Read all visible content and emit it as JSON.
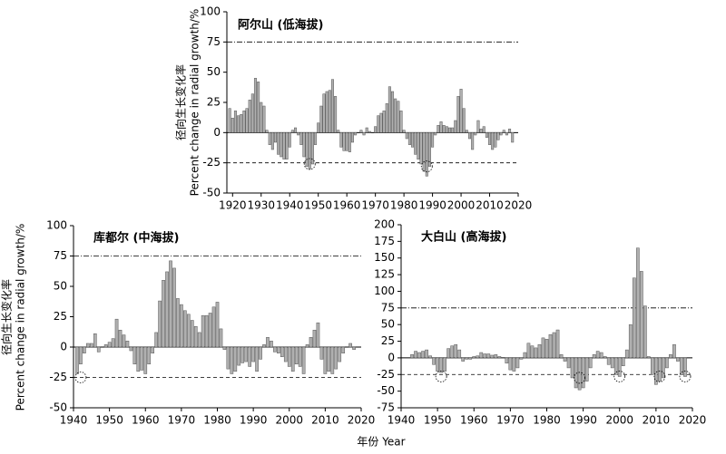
{
  "xlabel": "年份 Year",
  "ylabel": [
    "径向生长变化率",
    "Percent change in radial growth/%"
  ],
  "chart_data": [
    {
      "type": "bar",
      "title": "阿尔山 (低海拔)",
      "color": "#b0b0b0",
      "x": [
        1919,
        1920,
        1921,
        1922,
        1923,
        1924,
        1925,
        1926,
        1927,
        1928,
        1929,
        1930,
        1931,
        1932,
        1933,
        1934,
        1935,
        1936,
        1937,
        1938,
        1939,
        1940,
        1941,
        1942,
        1943,
        1944,
        1945,
        1946,
        1947,
        1948,
        1949,
        1950,
        1951,
        1952,
        1953,
        1954,
        1955,
        1956,
        1957,
        1958,
        1959,
        1960,
        1961,
        1962,
        1963,
        1964,
        1965,
        1966,
        1967,
        1968,
        1969,
        1970,
        1971,
        1972,
        1973,
        1974,
        1975,
        1976,
        1977,
        1978,
        1979,
        1980,
        1981,
        1982,
        1983,
        1984,
        1985,
        1986,
        1987,
        1988,
        1989,
        1990,
        1991,
        1992,
        1993,
        1994,
        1995,
        1996,
        1997,
        1998,
        1999,
        2000,
        2001,
        2002,
        2003,
        2004,
        2005,
        2006,
        2007,
        2008,
        2009,
        2010,
        2011,
        2012,
        2013,
        2014,
        2015,
        2016,
        2017,
        2018
      ],
      "values": [
        20,
        12,
        18,
        14,
        15,
        18,
        20,
        27,
        32,
        45,
        42,
        25,
        22,
        2,
        -10,
        -14,
        -8,
        -18,
        -20,
        -22,
        -22,
        -12,
        2,
        4,
        -2,
        -10,
        -20,
        -28,
        -30,
        -26,
        -10,
        8,
        22,
        32,
        34,
        35,
        44,
        30,
        2,
        -12,
        -15,
        -15,
        -16,
        -8,
        -2,
        0,
        2,
        -2,
        4,
        1,
        0,
        5,
        14,
        16,
        18,
        24,
        38,
        34,
        28,
        26,
        18,
        2,
        -5,
        -10,
        -12,
        -18,
        -22,
        -26,
        -32,
        -36,
        -28,
        -12,
        -2,
        6,
        9,
        6,
        5,
        4,
        4,
        10,
        30,
        36,
        20,
        2,
        -5,
        -14,
        -2,
        10,
        3,
        5,
        -4,
        -10,
        -14,
        -12,
        -6,
        -2,
        2,
        -2,
        3,
        -8
      ],
      "xlim": [
        1918,
        2020
      ],
      "xticks": [
        1920,
        1930,
        1940,
        1950,
        1960,
        1970,
        1980,
        1990,
        2000,
        2010,
        2020
      ],
      "ylim": [
        -50,
        100
      ],
      "yticks": [
        -50,
        -25,
        0,
        25,
        50,
        75,
        100
      ],
      "reference_lines": [
        75,
        -25
      ],
      "circles": [
        {
          "x": 1947,
          "y": -26
        },
        {
          "x": 1988,
          "y": -28
        }
      ]
    },
    {
      "type": "bar",
      "title": "库都尔 (中海拔)",
      "color": "#b0b0b0",
      "x": [
        1941,
        1942,
        1943,
        1944,
        1945,
        1946,
        1947,
        1948,
        1949,
        1950,
        1951,
        1952,
        1953,
        1954,
        1955,
        1956,
        1957,
        1958,
        1959,
        1960,
        1961,
        1962,
        1963,
        1964,
        1965,
        1966,
        1967,
        1968,
        1969,
        1970,
        1971,
        1972,
        1973,
        1974,
        1975,
        1976,
        1977,
        1978,
        1979,
        1980,
        1981,
        1982,
        1983,
        1984,
        1985,
        1986,
        1987,
        1988,
        1989,
        1990,
        1991,
        1992,
        1993,
        1994,
        1995,
        1996,
        1997,
        1998,
        1999,
        2000,
        2001,
        2002,
        2003,
        2004,
        2005,
        2006,
        2007,
        2008,
        2009,
        2010,
        2011,
        2012,
        2013,
        2014,
        2015,
        2016,
        2017,
        2018
      ],
      "values": [
        -22,
        -14,
        -5,
        3,
        3,
        11,
        -4,
        0,
        2,
        4,
        7,
        23,
        14,
        10,
        5,
        -3,
        -14,
        -20,
        -19,
        -22,
        -14,
        -5,
        12,
        38,
        55,
        62,
        71,
        65,
        40,
        35,
        30,
        27,
        22,
        17,
        12,
        26,
        26,
        28,
        33,
        37,
        15,
        -2,
        -18,
        -22,
        -20,
        -15,
        -13,
        -12,
        -16,
        -12,
        -20,
        -10,
        2,
        8,
        5,
        -4,
        -5,
        -8,
        -12,
        -16,
        -20,
        -14,
        -16,
        -22,
        2,
        8,
        14,
        20,
        -10,
        -22,
        -20,
        -22,
        -18,
        -12,
        -5,
        0,
        3,
        -2
      ],
      "xlim": [
        1940,
        2020
      ],
      "xticks": [
        1940,
        1950,
        1960,
        1970,
        1980,
        1990,
        2000,
        2010,
        2020
      ],
      "ylim": [
        -50,
        100
      ],
      "yticks": [
        -50,
        -25,
        0,
        25,
        50,
        75,
        100
      ],
      "reference_lines": [
        75,
        -25
      ],
      "circles": [
        {
          "x": 1942,
          "y": -25
        }
      ]
    },
    {
      "type": "bar",
      "title": "大白山 (高海拔)",
      "color": "#b0b0b0",
      "x": [
        1943,
        1944,
        1945,
        1946,
        1947,
        1948,
        1949,
        1950,
        1951,
        1952,
        1953,
        1954,
        1955,
        1956,
        1957,
        1958,
        1959,
        1960,
        1961,
        1962,
        1963,
        1964,
        1965,
        1966,
        1967,
        1968,
        1969,
        1970,
        1971,
        1972,
        1973,
        1974,
        1975,
        1976,
        1977,
        1978,
        1979,
        1980,
        1981,
        1982,
        1983,
        1984,
        1985,
        1986,
        1987,
        1988,
        1989,
        1990,
        1991,
        1992,
        1993,
        1994,
        1995,
        1996,
        1997,
        1998,
        1999,
        2000,
        2001,
        2002,
        2003,
        2004,
        2005,
        2006,
        2007,
        2008,
        2009,
        2010,
        2011,
        2012,
        2013,
        2014,
        2015,
        2016,
        2017,
        2018
      ],
      "values": [
        5,
        10,
        8,
        10,
        12,
        3,
        -10,
        -20,
        -22,
        -20,
        14,
        18,
        20,
        12,
        -5,
        -2,
        -2,
        2,
        3,
        8,
        6,
        6,
        4,
        5,
        2,
        0,
        -8,
        -18,
        -20,
        -15,
        -2,
        8,
        22,
        18,
        15,
        20,
        30,
        28,
        35,
        38,
        42,
        5,
        -5,
        -15,
        -30,
        -45,
        -48,
        -45,
        -35,
        -15,
        5,
        10,
        8,
        2,
        -10,
        -15,
        -25,
        -28,
        -12,
        12,
        50,
        120,
        165,
        130,
        78,
        2,
        -25,
        -40,
        -35,
        -30,
        -15,
        5,
        20,
        -5,
        -25,
        -28
      ],
      "xlim": [
        1940,
        2020
      ],
      "xticks": [
        1940,
        1950,
        1960,
        1970,
        1980,
        1990,
        2000,
        2010,
        2020
      ],
      "ylim": [
        -75,
        200
      ],
      "yticks": [
        -75,
        -50,
        -25,
        0,
        25,
        50,
        75,
        100,
        125,
        150,
        175,
        200
      ],
      "reference_lines": [
        75,
        -25
      ],
      "circles": [
        {
          "x": 1951,
          "y": -28
        },
        {
          "x": 1989,
          "y": -30
        },
        {
          "x": 2000,
          "y": -28
        },
        {
          "x": 2011,
          "y": -28
        },
        {
          "x": 2018,
          "y": -28
        }
      ]
    }
  ]
}
